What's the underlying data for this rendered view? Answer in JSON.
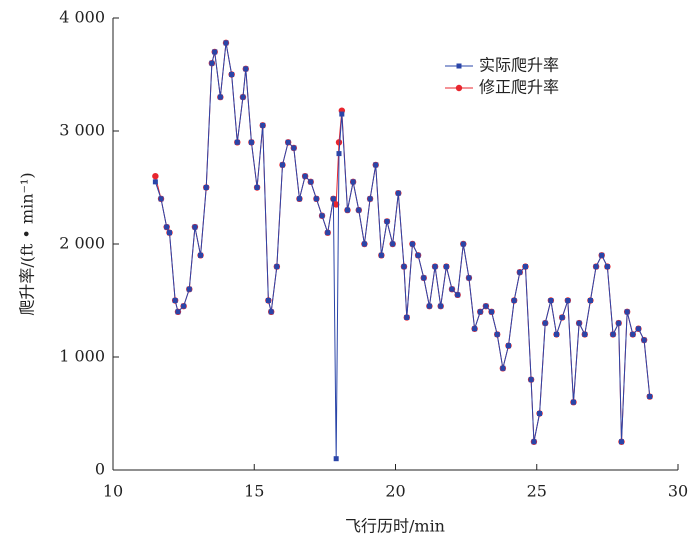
{
  "chart_data": {
    "type": "line",
    "x_label": "飞行历时/min",
    "y_label": "爬升率/(ft • min⁻¹)",
    "x": [
      11.5,
      11.7,
      11.9,
      12.0,
      12.2,
      12.3,
      12.5,
      12.7,
      12.9,
      13.1,
      13.3,
      13.5,
      13.6,
      13.8,
      14.0,
      14.2,
      14.4,
      14.6,
      14.7,
      14.9,
      15.1,
      15.3,
      15.5,
      15.6,
      15.8,
      16.0,
      16.2,
      16.4,
      16.6,
      16.8,
      17.0,
      17.2,
      17.4,
      17.6,
      17.8,
      17.9,
      18.0,
      18.1,
      18.3,
      18.5,
      18.7,
      18.9,
      19.1,
      19.3,
      19.5,
      19.7,
      19.9,
      20.1,
      20.3,
      20.4,
      20.6,
      20.8,
      21.0,
      21.2,
      21.4,
      21.6,
      21.8,
      22.0,
      22.2,
      22.4,
      22.6,
      22.8,
      23.0,
      23.2,
      23.4,
      23.6,
      23.8,
      24.0,
      24.2,
      24.4,
      24.6,
      24.8,
      24.9,
      25.1,
      25.3,
      25.5,
      25.7,
      25.9,
      26.1,
      26.3,
      26.5,
      26.7,
      26.9,
      27.1,
      27.3,
      27.5,
      27.7,
      27.9,
      28.0,
      28.2,
      28.4,
      28.6,
      28.8,
      29.0
    ],
    "series": [
      {
        "name": "实际爬升率",
        "color": "#2a45a8",
        "marker": "square",
        "values": [
          2550,
          2400,
          2150,
          2100,
          1500,
          1400,
          1450,
          1600,
          2150,
          1900,
          2500,
          3600,
          3700,
          3300,
          3780,
          3500,
          2900,
          3300,
          3550,
          2900,
          2500,
          3050,
          1500,
          1400,
          1800,
          2700,
          2900,
          2850,
          2400,
          2600,
          2550,
          2400,
          2250,
          2100,
          2400,
          100,
          2800,
          3150,
          2300,
          2550,
          2300,
          2000,
          2400,
          2700,
          1900,
          2200,
          2000,
          2450,
          1800,
          1350,
          2000,
          1900,
          1700,
          1450,
          1800,
          1450,
          1800,
          1600,
          1550,
          2000,
          1700,
          1250,
          1400,
          1450,
          1400,
          1200,
          900,
          1100,
          1500,
          1750,
          1800,
          800,
          250,
          500,
          1300,
          1500,
          1200,
          1350,
          1500,
          600,
          1300,
          1200,
          1500,
          1800,
          1900,
          1800,
          1200,
          1300,
          250,
          1400,
          1200,
          1250,
          1150,
          650
        ]
      },
      {
        "name": "修正爬升率",
        "color": "#e8262e",
        "marker": "circle",
        "values": [
          2600,
          2400,
          2150,
          2100,
          1500,
          1400,
          1450,
          1600,
          2150,
          1900,
          2500,
          3600,
          3700,
          3300,
          3780,
          3500,
          2900,
          3300,
          3550,
          2900,
          2500,
          3050,
          1500,
          1400,
          1800,
          2700,
          2900,
          2850,
          2400,
          2600,
          2550,
          2400,
          2250,
          2100,
          2400,
          2350,
          2900,
          3180,
          2300,
          2550,
          2300,
          2000,
          2400,
          2700,
          1900,
          2200,
          2000,
          2450,
          1800,
          1350,
          2000,
          1900,
          1700,
          1450,
          1800,
          1450,
          1800,
          1600,
          1550,
          2000,
          1700,
          1250,
          1400,
          1450,
          1400,
          1200,
          900,
          1100,
          1500,
          1750,
          1800,
          800,
          250,
          500,
          1300,
          1500,
          1200,
          1350,
          1500,
          600,
          1300,
          1200,
          1500,
          1800,
          1900,
          1800,
          1200,
          1300,
          250,
          1400,
          1200,
          1250,
          1150,
          650
        ]
      }
    ],
    "xlim": [
      10,
      30
    ],
    "xticks": [
      10,
      15,
      20,
      25,
      30
    ],
    "ylim": [
      0,
      4000
    ],
    "yticks": [
      0,
      {
        "value": 1000,
        "label": "1 000"
      },
      {
        "value": 2000,
        "label": "2 000"
      },
      {
        "value": 3000,
        "label": "3 000"
      },
      {
        "value": 4000,
        "label": "4 000"
      }
    ],
    "legend": "upper right"
  }
}
